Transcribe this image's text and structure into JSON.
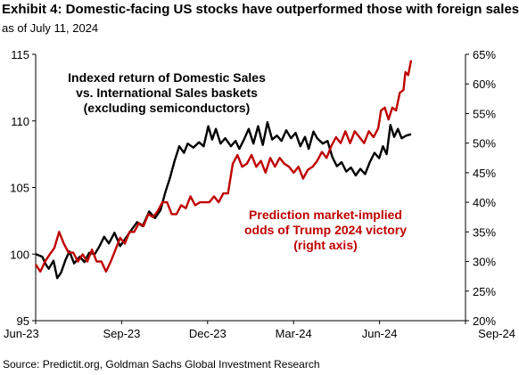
{
  "header": {
    "title": "Exhibit 4: Domestic-facing US stocks have outperformed those with foreign sales",
    "subtitle": "as of July 11, 2024"
  },
  "footer": {
    "source": "Source: Predictit.org, Goldman Sachs Global Investment Research"
  },
  "chart_data": {
    "type": "line",
    "title": "",
    "xlabel": "",
    "ylabel": "",
    "grid": false,
    "x_ticks": [
      "Jun-23",
      "Sep-23",
      "Dec-23",
      "Mar-24",
      "Jun-24",
      "Sep-24"
    ],
    "x_range": [
      "2023-06-01",
      "2024-09-01"
    ],
    "ylim_left": [
      95,
      115
    ],
    "y_ticks_left": [
      "95",
      "100",
      "105",
      "110",
      "115"
    ],
    "ylim_right": [
      20,
      65
    ],
    "y_ticks_right": [
      "20%",
      "25%",
      "30%",
      "35%",
      "40%",
      "45%",
      "50%",
      "55%",
      "60%",
      "65%"
    ],
    "annotations": [
      {
        "lines": [
          "Indexed return of Domestic Sales",
          "vs. International Sales baskets",
          "(excluding semiconductors)"
        ],
        "color": "#000000"
      },
      {
        "lines": [
          "Prediction market-implied",
          "odds of Trump 2024 victory",
          "(right axis)"
        ],
        "color": "#c00000"
      }
    ],
    "series": [
      {
        "color": "#000000",
        "axis": "left",
        "points": [
          [
            "2023-06-01",
            100.0
          ],
          [
            "2023-06-08",
            99.8
          ],
          [
            "2023-06-12",
            99.2
          ],
          [
            "2023-06-15",
            98.9
          ],
          [
            "2023-06-20",
            99.5
          ],
          [
            "2023-06-24",
            98.2
          ],
          [
            "2023-06-28",
            98.6
          ],
          [
            "2023-07-03",
            99.6
          ],
          [
            "2023-07-07",
            100.2
          ],
          [
            "2023-07-12",
            99.3
          ],
          [
            "2023-07-18",
            99.8
          ],
          [
            "2023-07-23",
            99.4
          ],
          [
            "2023-07-28",
            100.1
          ],
          [
            "2023-08-03",
            100.0
          ],
          [
            "2023-08-08",
            100.6
          ],
          [
            "2023-08-13",
            101.3
          ],
          [
            "2023-08-18",
            100.8
          ],
          [
            "2023-08-24",
            101.6
          ],
          [
            "2023-08-30",
            100.6
          ],
          [
            "2023-09-05",
            101.2
          ],
          [
            "2023-09-11",
            101.8
          ],
          [
            "2023-09-17",
            102.4
          ],
          [
            "2023-09-23",
            102.1
          ],
          [
            "2023-09-30",
            103.2
          ],
          [
            "2023-10-06",
            102.7
          ],
          [
            "2023-10-12",
            103.3
          ],
          [
            "2023-10-17",
            104.6
          ],
          [
            "2023-10-22",
            105.7
          ],
          [
            "2023-10-27",
            107.0
          ],
          [
            "2023-11-01",
            108.1
          ],
          [
            "2023-11-06",
            107.6
          ],
          [
            "2023-11-10",
            108.3
          ],
          [
            "2023-11-16",
            108.0
          ],
          [
            "2023-11-22",
            108.4
          ],
          [
            "2023-11-27",
            108.1
          ],
          [
            "2023-12-02",
            109.6
          ],
          [
            "2023-12-06",
            108.6
          ],
          [
            "2023-12-10",
            109.4
          ],
          [
            "2023-12-15",
            108.3
          ],
          [
            "2023-12-20",
            108.7
          ],
          [
            "2023-12-26",
            108.1
          ],
          [
            "2023-12-31",
            108.5
          ],
          [
            "2024-01-04",
            107.9
          ],
          [
            "2024-01-09",
            108.6
          ],
          [
            "2024-01-14",
            109.4
          ],
          [
            "2024-01-19",
            108.3
          ],
          [
            "2024-01-24",
            109.6
          ],
          [
            "2024-01-29",
            108.2
          ],
          [
            "2024-02-03",
            109.9
          ],
          [
            "2024-02-08",
            108.6
          ],
          [
            "2024-02-13",
            108.9
          ],
          [
            "2024-02-18",
            108.5
          ],
          [
            "2024-02-23",
            109.3
          ],
          [
            "2024-02-28",
            108.7
          ],
          [
            "2024-03-04",
            109.1
          ],
          [
            "2024-03-09",
            108.1
          ],
          [
            "2024-03-14",
            108.8
          ],
          [
            "2024-03-18",
            107.9
          ],
          [
            "2024-03-23",
            109.2
          ],
          [
            "2024-03-27",
            108.7
          ],
          [
            "2024-04-02",
            108.3
          ],
          [
            "2024-04-07",
            108.5
          ],
          [
            "2024-04-12",
            107.3
          ],
          [
            "2024-04-17",
            106.6
          ],
          [
            "2024-04-22",
            106.9
          ],
          [
            "2024-04-27",
            106.2
          ],
          [
            "2024-05-02",
            106.5
          ],
          [
            "2024-05-07",
            105.9
          ],
          [
            "2024-05-12",
            106.4
          ],
          [
            "2024-05-17",
            106.0
          ],
          [
            "2024-05-22",
            106.9
          ],
          [
            "2024-05-27",
            107.6
          ],
          [
            "2024-06-01",
            107.2
          ],
          [
            "2024-06-05",
            108.1
          ],
          [
            "2024-06-09",
            107.5
          ],
          [
            "2024-06-13",
            109.7
          ],
          [
            "2024-06-17",
            108.8
          ],
          [
            "2024-06-21",
            109.4
          ],
          [
            "2024-06-25",
            108.7
          ],
          [
            "2024-06-30",
            108.9
          ],
          [
            "2024-07-05",
            109.0
          ]
        ]
      },
      {
        "color": "#c00000",
        "axis": "right",
        "points": [
          [
            "2023-06-01",
            29.5
          ],
          [
            "2023-06-06",
            28.3
          ],
          [
            "2023-06-11",
            30.0
          ],
          [
            "2023-06-16",
            31.2
          ],
          [
            "2023-06-21",
            32.3
          ],
          [
            "2023-06-26",
            35.0
          ],
          [
            "2023-07-01",
            33.0
          ],
          [
            "2023-07-06",
            31.5
          ],
          [
            "2023-07-11",
            31.5
          ],
          [
            "2023-07-16",
            30.0
          ],
          [
            "2023-07-21",
            31.2
          ],
          [
            "2023-07-26",
            30.0
          ],
          [
            "2023-07-31",
            32.0
          ],
          [
            "2023-08-05",
            30.0
          ],
          [
            "2023-08-10",
            30.0
          ],
          [
            "2023-08-15",
            28.3
          ],
          [
            "2023-08-20",
            30.0
          ],
          [
            "2023-08-25",
            32.0
          ],
          [
            "2023-08-30",
            34.0
          ],
          [
            "2023-09-04",
            33.0
          ],
          [
            "2023-09-09",
            35.0
          ],
          [
            "2023-09-14",
            35.0
          ],
          [
            "2023-09-19",
            36.5
          ],
          [
            "2023-09-24",
            36.0
          ],
          [
            "2023-09-29",
            38.0
          ],
          [
            "2023-10-04",
            37.5
          ],
          [
            "2023-10-09",
            38.5
          ],
          [
            "2023-10-14",
            40.0
          ],
          [
            "2023-10-19",
            40.0
          ],
          [
            "2023-10-24",
            38.0
          ],
          [
            "2023-10-29",
            38.0
          ],
          [
            "2023-11-03",
            39.5
          ],
          [
            "2023-11-08",
            39.0
          ],
          [
            "2023-11-13",
            41.0
          ],
          [
            "2023-11-18",
            39.5
          ],
          [
            "2023-11-23",
            40.0
          ],
          [
            "2023-11-28",
            40.0
          ],
          [
            "2023-12-03",
            40.0
          ],
          [
            "2023-12-08",
            41.0
          ],
          [
            "2023-12-13",
            40.0
          ],
          [
            "2023-12-18",
            41.5
          ],
          [
            "2023-12-23",
            41.5
          ],
          [
            "2023-12-28",
            46.5
          ],
          [
            "2024-01-02",
            48.0
          ],
          [
            "2024-01-07",
            46.0
          ],
          [
            "2024-01-12",
            46.5
          ],
          [
            "2024-01-17",
            48.0
          ],
          [
            "2024-01-22",
            46.0
          ],
          [
            "2024-01-27",
            47.0
          ],
          [
            "2024-02-01",
            45.0
          ],
          [
            "2024-02-06",
            47.5
          ],
          [
            "2024-02-11",
            46.0
          ],
          [
            "2024-02-16",
            47.5
          ],
          [
            "2024-02-21",
            46.5
          ],
          [
            "2024-02-26",
            46.0
          ],
          [
            "2024-03-02",
            45.0
          ],
          [
            "2024-03-07",
            46.0
          ],
          [
            "2024-03-12",
            44.0
          ],
          [
            "2024-03-17",
            45.5
          ],
          [
            "2024-03-22",
            46.0
          ],
          [
            "2024-03-27",
            47.0
          ],
          [
            "2024-04-01",
            48.5
          ],
          [
            "2024-04-06",
            47.5
          ],
          [
            "2024-04-11",
            49.5
          ],
          [
            "2024-04-16",
            51.0
          ],
          [
            "2024-04-21",
            50.0
          ],
          [
            "2024-04-26",
            52.0
          ],
          [
            "2024-05-01",
            50.0
          ],
          [
            "2024-05-06",
            52.0
          ],
          [
            "2024-05-11",
            51.0
          ],
          [
            "2024-05-16",
            50.0
          ],
          [
            "2024-05-21",
            52.0
          ],
          [
            "2024-05-26",
            51.0
          ],
          [
            "2024-05-31",
            52.5
          ],
          [
            "2024-06-03",
            55.5
          ],
          [
            "2024-06-07",
            56.0
          ],
          [
            "2024-06-11",
            54.0
          ],
          [
            "2024-06-15",
            56.0
          ],
          [
            "2024-06-19",
            55.5
          ],
          [
            "2024-06-23",
            58.5
          ],
          [
            "2024-06-27",
            59.0
          ],
          [
            "2024-06-29",
            62.0
          ],
          [
            "2024-07-02",
            61.5
          ],
          [
            "2024-07-05",
            64.0
          ]
        ]
      }
    ]
  }
}
